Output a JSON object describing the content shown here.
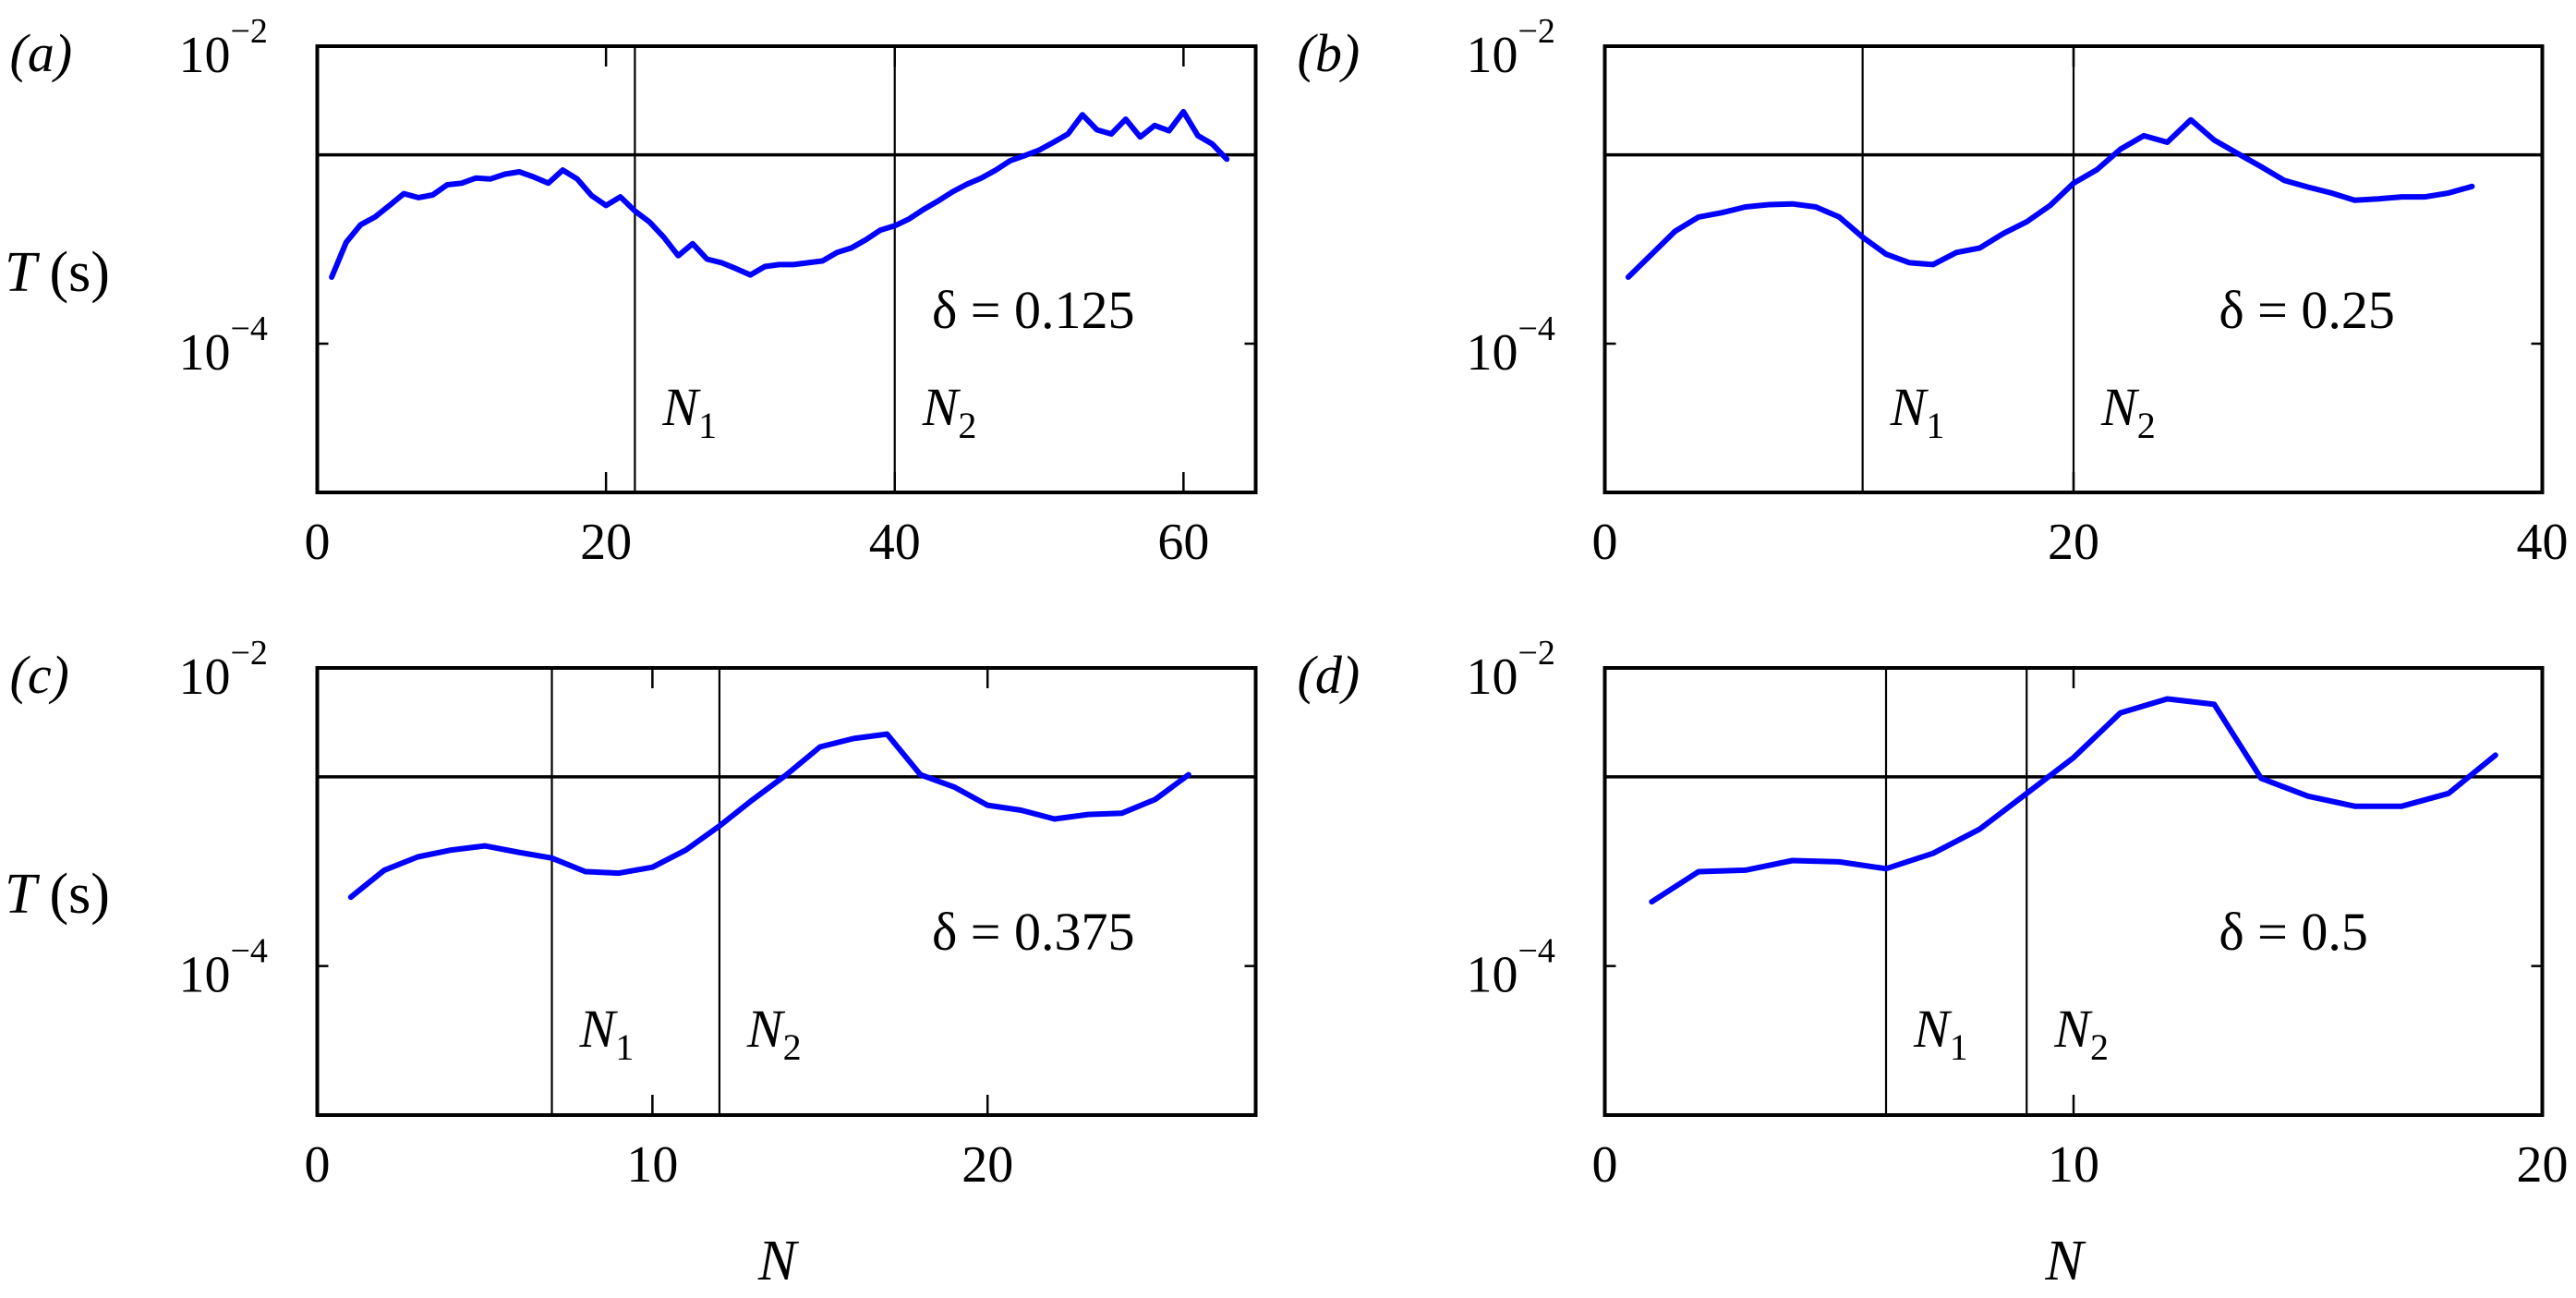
{
  "figure": {
    "ylabel": "T",
    "ylabel_unit": "(s)",
    "xlabel": "N",
    "curve_color": "#0000ff",
    "line_color": "#000000"
  },
  "chart_data": [
    {
      "type": "line",
      "panel": "(a)",
      "annotation": "δ = 0.125",
      "delta": 0.125,
      "xlabel": "",
      "ylabel": "T (s)",
      "yscale": "log",
      "xlim": [
        0,
        65
      ],
      "ylim": [
        1e-05,
        0.01
      ],
      "xticks": [
        0,
        20,
        40,
        60
      ],
      "yticks": [
        {
          "value": 0.01,
          "base": "10",
          "exp": "−2"
        },
        {
          "value": 0.0001,
          "base": "10",
          "exp": "−4"
        }
      ],
      "threshold": 0.00186,
      "vlines": [
        {
          "label": "N",
          "sub": "1",
          "x": 22
        },
        {
          "label": "N",
          "sub": "2",
          "x": 40
        }
      ],
      "series": [
        {
          "name": "T",
          "x": [
            1,
            2,
            3,
            4,
            5,
            6,
            7,
            8,
            9,
            10,
            11,
            12,
            13,
            14,
            15,
            16,
            17,
            18,
            19,
            20,
            21,
            22,
            23,
            24,
            25,
            26,
            27,
            28,
            29,
            30,
            31,
            32,
            33,
            34,
            35,
            36,
            37,
            38,
            39,
            40,
            41,
            42,
            43,
            44,
            45,
            46,
            47,
            48,
            49,
            50,
            51,
            52,
            53,
            54,
            55,
            56,
            57,
            58,
            59,
            60,
            61,
            62,
            63
          ],
          "values": [
            0.00028,
            0.00048,
            0.00063,
            0.00071,
            0.00085,
            0.00102,
            0.00096,
            0.001,
            0.00117,
            0.0012,
            0.0013,
            0.00128,
            0.00138,
            0.00143,
            0.00132,
            0.0012,
            0.00147,
            0.00128,
            0.00099,
            0.00085,
            0.00097,
            0.00078,
            0.00066,
            0.00052,
            0.00039,
            0.00047,
            0.00037,
            0.00035,
            0.00032,
            0.00029,
            0.00033,
            0.00034,
            0.00034,
            0.00035,
            0.00036,
            0.00041,
            0.00044,
            0.0005,
            0.00058,
            0.00062,
            0.00069,
            0.0008,
            0.00091,
            0.00105,
            0.00118,
            0.0013,
            0.00147,
            0.0017,
            0.00184,
            0.002,
            0.00226,
            0.00257,
            0.00346,
            0.00274,
            0.00257,
            0.00323,
            0.00245,
            0.00293,
            0.0027,
            0.00363,
            0.0025,
            0.0022,
            0.00174
          ]
        }
      ]
    },
    {
      "type": "line",
      "panel": "(b)",
      "annotation": "δ = 0.25",
      "delta": 0.25,
      "xlabel": "",
      "ylabel": "",
      "yscale": "log",
      "xlim": [
        0,
        40
      ],
      "ylim": [
        1e-05,
        0.01
      ],
      "xticks": [
        0,
        20,
        40
      ],
      "yticks": [
        {
          "value": 0.01,
          "base": "10",
          "exp": "−2"
        },
        {
          "value": 0.0001,
          "base": "10",
          "exp": "−4"
        }
      ],
      "threshold": 0.00186,
      "vlines": [
        {
          "label": "N",
          "sub": "1",
          "x": 11
        },
        {
          "label": "N",
          "sub": "2",
          "x": 20
        }
      ],
      "series": [
        {
          "name": "T",
          "x": [
            1,
            2,
            3,
            4,
            5,
            6,
            7,
            8,
            9,
            10,
            11,
            12,
            13,
            14,
            15,
            16,
            17,
            18,
            19,
            20,
            21,
            22,
            23,
            24,
            25,
            26,
            27,
            28,
            29,
            30,
            31,
            32,
            33,
            34,
            35,
            36,
            37
          ],
          "values": [
            0.00028,
            0.0004,
            0.00057,
            0.00071,
            0.00076,
            0.00083,
            0.00086,
            0.00087,
            0.00083,
            0.00071,
            0.00052,
            0.0004,
            0.00035,
            0.00034,
            0.00041,
            0.00044,
            0.00055,
            0.00066,
            0.00085,
            0.0012,
            0.00148,
            0.00203,
            0.0025,
            0.00226,
            0.0032,
            0.00234,
            0.0019,
            0.00155,
            0.00125,
            0.00113,
            0.00103,
            0.00092,
            0.00094,
            0.00097,
            0.00097,
            0.00103,
            0.00114
          ]
        }
      ]
    },
    {
      "type": "line",
      "panel": "(c)",
      "annotation": "δ = 0.375",
      "delta": 0.375,
      "xlabel": "N",
      "ylabel": "T (s)",
      "yscale": "log",
      "xlim": [
        0,
        28
      ],
      "ylim": [
        1e-05,
        0.01
      ],
      "xticks": [
        0,
        10,
        20
      ],
      "yticks": [
        {
          "value": 0.01,
          "base": "10",
          "exp": "−2"
        },
        {
          "value": 0.0001,
          "base": "10",
          "exp": "−4"
        }
      ],
      "threshold": 0.00186,
      "vlines": [
        {
          "label": "N",
          "sub": "1",
          "x": 7
        },
        {
          "label": "N",
          "sub": "2",
          "x": 12
        }
      ],
      "series": [
        {
          "name": "T",
          "x": [
            1,
            2,
            3,
            4,
            5,
            6,
            7,
            8,
            9,
            10,
            11,
            12,
            13,
            14,
            15,
            16,
            17,
            18,
            19,
            20,
            21,
            22,
            23,
            24,
            25,
            26
          ],
          "values": [
            0.00029,
            0.00044,
            0.00054,
            0.0006,
            0.00064,
            0.00058,
            0.00053,
            0.00043,
            0.00042,
            0.00046,
            0.0006,
            0.00087,
            0.00131,
            0.00192,
            0.00295,
            0.00336,
            0.0036,
            0.00192,
            0.00159,
            0.0012,
            0.00111,
            0.00097,
            0.00104,
            0.00106,
            0.00131,
            0.00192
          ]
        }
      ]
    },
    {
      "type": "line",
      "panel": "(d)",
      "annotation": "δ = 0.5",
      "delta": 0.5,
      "xlabel": "N",
      "ylabel": "",
      "yscale": "log",
      "xlim": [
        0,
        20
      ],
      "ylim": [
        1e-05,
        0.01
      ],
      "xticks": [
        0,
        10,
        20
      ],
      "yticks": [
        {
          "value": 0.01,
          "base": "10",
          "exp": "−2"
        },
        {
          "value": 0.0001,
          "base": "10",
          "exp": "−4"
        }
      ],
      "threshold": 0.00186,
      "vlines": [
        {
          "label": "N",
          "sub": "1",
          "x": 6
        },
        {
          "label": "N",
          "sub": "2",
          "x": 9
        }
      ],
      "series": [
        {
          "name": "T",
          "x": [
            1,
            2,
            3,
            4,
            5,
            6,
            7,
            8,
            9,
            10,
            11,
            12,
            13,
            14,
            15,
            16,
            17,
            18,
            19
          ],
          "values": [
            0.00027,
            0.00043,
            0.00044,
            0.00051,
            0.0005,
            0.00045,
            0.00057,
            0.00083,
            0.00144,
            0.0025,
            0.005,
            0.0062,
            0.0057,
            0.00182,
            0.00138,
            0.00118,
            0.00118,
            0.00144,
            0.0026
          ]
        }
      ]
    }
  ]
}
